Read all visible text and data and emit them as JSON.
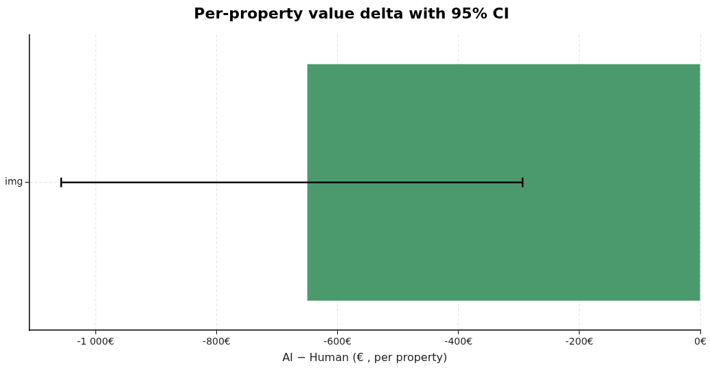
{
  "chart_data": {
    "type": "bar",
    "orientation": "horizontal",
    "title": "Per-property value delta with 95% CI",
    "xlabel": "AI − Human (€ , per property)",
    "categories": [
      "img"
    ],
    "values": [
      -650
    ],
    "color": "#4a9a6d",
    "errors": [
      [
        -1057,
        -294
      ]
    ],
    "xlim": [
      -1110,
      0
    ],
    "xticks": [
      {
        "value": -1000,
        "label": "-1 000€"
      },
      {
        "value": -800,
        "label": "-800€"
      },
      {
        "value": -600,
        "label": "-600€"
      },
      {
        "value": -400,
        "label": "-400€"
      },
      {
        "value": -200,
        "label": "-200€"
      },
      {
        "value": 0,
        "label": "0€"
      }
    ],
    "grid": true,
    "legend": false
  }
}
